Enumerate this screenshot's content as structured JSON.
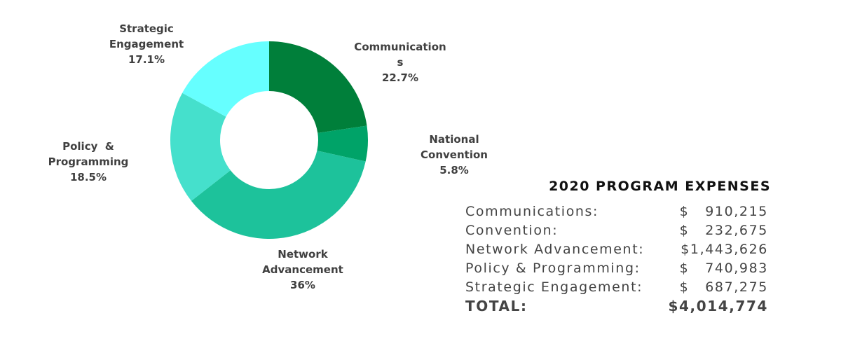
{
  "chart_data": {
    "type": "pie",
    "subtype": "donut",
    "slices": [
      {
        "label": "Communication\ns",
        "value": 22.7,
        "display": "22.7%",
        "color": "#007f3a"
      },
      {
        "label": "National\nConvention",
        "value": 5.8,
        "display": "5.8%",
        "color": "#00a368"
      },
      {
        "label": "Network\nAdvancement",
        "value": 36,
        "display": "36%",
        "color": "#1dc29b"
      },
      {
        "label": "Policy  &\nProgramming",
        "value": 18.5,
        "display": "18.5%",
        "color": "#45e0cc"
      },
      {
        "label": "Strategic\nEngagement",
        "value": 17.1,
        "display": "17.1%",
        "color": "#66ffff"
      }
    ]
  },
  "table": {
    "title": "2020 PROGRAM EXPENSES",
    "rows": [
      {
        "label": "Communications:",
        "value": "$   910,215"
      },
      {
        "label": "Convention:",
        "value": "$   232,675"
      },
      {
        "label": "Network Advancement:",
        "value": "$1,443,626"
      },
      {
        "label": "Policy & Programming:",
        "value": "$   740,983"
      },
      {
        "label": "Strategic Engagement:",
        "value": "$   687,275"
      }
    ],
    "total_label": "TOTAL:",
    "total_value": "$4,014,774"
  }
}
